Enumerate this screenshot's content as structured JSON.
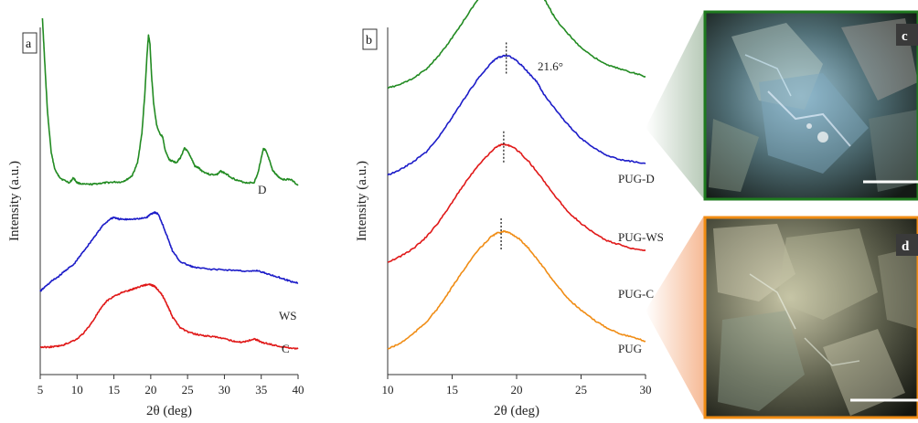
{
  "chart_data": [
    {
      "type": "line",
      "panel_label": "a",
      "xlabel": "2θ (deg)",
      "ylabel": "Intensity (a.u.)",
      "xlim": [
        5,
        40
      ],
      "xticks": [
        "5",
        "10",
        "15",
        "20",
        "25",
        "30",
        "35",
        "40"
      ],
      "grid": false,
      "series": [
        {
          "name": "D",
          "color": "#228b22",
          "points": [
            [
              5.3,
              1.05
            ],
            [
              5.6,
              0.92
            ],
            [
              6.0,
              0.76
            ],
            [
              6.5,
              0.64
            ],
            [
              7.0,
              0.59
            ],
            [
              7.5,
              0.57
            ],
            [
              8.0,
              0.56
            ],
            [
              9.0,
              0.55
            ],
            [
              9.5,
              0.565
            ],
            [
              10,
              0.55
            ],
            [
              11,
              0.545
            ],
            [
              12,
              0.545
            ],
            [
              13,
              0.548
            ],
            [
              14,
              0.55
            ],
            [
              15,
              0.552
            ],
            [
              16,
              0.552
            ],
            [
              16.8,
              0.56
            ],
            [
              17.5,
              0.572
            ],
            [
              18.2,
              0.61
            ],
            [
              18.8,
              0.7
            ],
            [
              19.2,
              0.82
            ],
            [
              19.5,
              0.94
            ],
            [
              19.7,
              1.0
            ],
            [
              19.9,
              0.97
            ],
            [
              20.1,
              0.88
            ],
            [
              20.4,
              0.79
            ],
            [
              20.8,
              0.725
            ],
            [
              21.2,
              0.7
            ],
            [
              21.6,
              0.69
            ],
            [
              22.0,
              0.645
            ],
            [
              22.5,
              0.62
            ],
            [
              23.0,
              0.615
            ],
            [
              23.5,
              0.612
            ],
            [
              24.0,
              0.625
            ],
            [
              24.6,
              0.655
            ],
            [
              25.0,
              0.645
            ],
            [
              25.5,
              0.625
            ],
            [
              26.0,
              0.6
            ],
            [
              26.5,
              0.595
            ],
            [
              27.0,
              0.585
            ],
            [
              28.0,
              0.575
            ],
            [
              29.0,
              0.575
            ],
            [
              29.5,
              0.585
            ],
            [
              30.0,
              0.58
            ],
            [
              31.0,
              0.565
            ],
            [
              32.0,
              0.555
            ],
            [
              33.0,
              0.55
            ],
            [
              34.0,
              0.55
            ],
            [
              34.5,
              0.575
            ],
            [
              35.0,
              0.625
            ],
            [
              35.3,
              0.655
            ],
            [
              35.6,
              0.648
            ],
            [
              36.0,
              0.625
            ],
            [
              36.5,
              0.59
            ],
            [
              37.0,
              0.575
            ],
            [
              37.5,
              0.565
            ],
            [
              38.0,
              0.56
            ],
            [
              39.0,
              0.56
            ],
            [
              40.0,
              0.542
            ]
          ]
        },
        {
          "name": "WS",
          "color": "#1c1cc8",
          "points": [
            [
              5.0,
              0.22
            ],
            [
              5.5,
              0.23
            ],
            [
              6.5,
              0.25
            ],
            [
              7.5,
              0.265
            ],
            [
              8.5,
              0.285
            ],
            [
              9.5,
              0.3
            ],
            [
              10.5,
              0.33
            ],
            [
              11.5,
              0.36
            ],
            [
              12.5,
              0.39
            ],
            [
              13.5,
              0.42
            ],
            [
              14.5,
              0.44
            ],
            [
              15.0,
              0.445
            ],
            [
              15.5,
              0.44
            ],
            [
              16.5,
              0.438
            ],
            [
              17.5,
              0.44
            ],
            [
              18.5,
              0.44
            ],
            [
              19.5,
              0.445
            ],
            [
              20.0,
              0.455
            ],
            [
              20.5,
              0.46
            ],
            [
              21.0,
              0.455
            ],
            [
              21.5,
              0.43
            ],
            [
              22.0,
              0.4
            ],
            [
              22.5,
              0.37
            ],
            [
              23.0,
              0.34
            ],
            [
              24.0,
              0.31
            ],
            [
              25.0,
              0.3
            ],
            [
              26.0,
              0.292
            ],
            [
              28.0,
              0.287
            ],
            [
              30.0,
              0.285
            ],
            [
              32.0,
              0.283
            ],
            [
              33.5,
              0.28
            ],
            [
              34.5,
              0.283
            ],
            [
              35.5,
              0.275
            ],
            [
              37.0,
              0.265
            ],
            [
              38.0,
              0.258
            ],
            [
              39.0,
              0.25
            ],
            [
              40.0,
              0.245
            ]
          ]
        },
        {
          "name": "C",
          "color": "#e01818",
          "points": [
            [
              5.0,
              0.05
            ],
            [
              6.0,
              0.05
            ],
            [
              7.0,
              0.052
            ],
            [
              8.0,
              0.055
            ],
            [
              9.0,
              0.065
            ],
            [
              10.0,
              0.075
            ],
            [
              11.0,
              0.095
            ],
            [
              12.0,
              0.125
            ],
            [
              13.0,
              0.16
            ],
            [
              14.0,
              0.19
            ],
            [
              15.0,
              0.205
            ],
            [
              16.0,
              0.215
            ],
            [
              17.0,
              0.222
            ],
            [
              18.0,
              0.23
            ],
            [
              19.0,
              0.238
            ],
            [
              19.5,
              0.24
            ],
            [
              20.0,
              0.24
            ],
            [
              20.5,
              0.235
            ],
            [
              21.0,
              0.225
            ],
            [
              21.5,
              0.21
            ],
            [
              22.0,
              0.19
            ],
            [
              22.5,
              0.165
            ],
            [
              23.0,
              0.14
            ],
            [
              24.0,
              0.11
            ],
            [
              25.0,
              0.097
            ],
            [
              26.0,
              0.09
            ],
            [
              27.0,
              0.086
            ],
            [
              28.0,
              0.083
            ],
            [
              29.0,
              0.08
            ],
            [
              30.0,
              0.075
            ],
            [
              31.0,
              0.07
            ],
            [
              32.0,
              0.065
            ],
            [
              33.0,
              0.068
            ],
            [
              34.0,
              0.075
            ],
            [
              34.5,
              0.072
            ],
            [
              35.0,
              0.065
            ],
            [
              36.0,
              0.06
            ],
            [
              37.0,
              0.055
            ],
            [
              38.0,
              0.05
            ],
            [
              39.0,
              0.048
            ],
            [
              40.0,
              0.045
            ]
          ]
        }
      ],
      "series_labels": [
        "D",
        "WS",
        "C"
      ]
    },
    {
      "type": "line",
      "panel_label": "b",
      "xlabel": "2θ (deg)",
      "ylabel": "Intensity (a.u.)",
      "xlim": [
        10,
        30
      ],
      "xticks": [
        "10",
        "15",
        "20",
        "25",
        "30"
      ],
      "grid": false,
      "annotation": "21.6°",
      "series": [
        {
          "name": "PUG-D",
          "color": "#228b22",
          "offset": 0.675,
          "points": [
            [
              10,
              0.0
            ],
            [
              11,
              0.01
            ],
            [
              12,
              0.025
            ],
            [
              13,
              0.05
            ],
            [
              14,
              0.085
            ],
            [
              15,
              0.13
            ],
            [
              16,
              0.18
            ],
            [
              17,
              0.23
            ],
            [
              18,
              0.27
            ],
            [
              18.8,
              0.29
            ],
            [
              19.4,
              0.3
            ],
            [
              20.0,
              0.295
            ],
            [
              20.8,
              0.285
            ],
            [
              21.3,
              0.28
            ],
            [
              21.6,
              0.272
            ],
            [
              22.0,
              0.24
            ],
            [
              22.5,
              0.21
            ],
            [
              23,
              0.18
            ],
            [
              24,
              0.14
            ],
            [
              25,
              0.105
            ],
            [
              26,
              0.08
            ],
            [
              27,
              0.06
            ],
            [
              28,
              0.05
            ],
            [
              29,
              0.04
            ],
            [
              30,
              0.03
            ]
          ]
        },
        {
          "name": "PUG-WS",
          "color": "#1c1cc8",
          "offset": 0.45,
          "points": [
            [
              10,
              0.0
            ],
            [
              11,
              0.015
            ],
            [
              12,
              0.035
            ],
            [
              13,
              0.06
            ],
            [
              14,
              0.1
            ],
            [
              15,
              0.15
            ],
            [
              16,
              0.2
            ],
            [
              17,
              0.25
            ],
            [
              18,
              0.29
            ],
            [
              18.6,
              0.305
            ],
            [
              19.2,
              0.31
            ],
            [
              19.8,
              0.302
            ],
            [
              20.5,
              0.28
            ],
            [
              21,
              0.262
            ],
            [
              21.6,
              0.24
            ],
            [
              22,
              0.215
            ],
            [
              23,
              0.17
            ],
            [
              24,
              0.13
            ],
            [
              25,
              0.095
            ],
            [
              26,
              0.07
            ],
            [
              27,
              0.05
            ],
            [
              28,
              0.04
            ],
            [
              29,
              0.035
            ],
            [
              30,
              0.03
            ]
          ]
        },
        {
          "name": "PUG-C",
          "color": "#e01818",
          "offset": 0.225,
          "points": [
            [
              10,
              0.0
            ],
            [
              11,
              0.015
            ],
            [
              12,
              0.035
            ],
            [
              13,
              0.065
            ],
            [
              14,
              0.105
            ],
            [
              15,
              0.155
            ],
            [
              16,
              0.205
            ],
            [
              17,
              0.25
            ],
            [
              18,
              0.285
            ],
            [
              18.5,
              0.3
            ],
            [
              19,
              0.305
            ],
            [
              19.6,
              0.3
            ],
            [
              20.2,
              0.285
            ],
            [
              21,
              0.258
            ],
            [
              22,
              0.215
            ],
            [
              23,
              0.17
            ],
            [
              24,
              0.13
            ],
            [
              25,
              0.1
            ],
            [
              26,
              0.075
            ],
            [
              27,
              0.055
            ],
            [
              28,
              0.045
            ],
            [
              29,
              0.035
            ],
            [
              30,
              0.03
            ]
          ]
        },
        {
          "name": "PUG",
          "color": "#f08c14",
          "offset": 0.0,
          "points": [
            [
              10,
              0.0
            ],
            [
              11,
              0.015
            ],
            [
              12,
              0.04
            ],
            [
              13,
              0.07
            ],
            [
              14,
              0.11
            ],
            [
              15,
              0.16
            ],
            [
              16,
              0.21
            ],
            [
              17,
              0.255
            ],
            [
              18,
              0.29
            ],
            [
              18.5,
              0.3
            ],
            [
              19,
              0.305
            ],
            [
              19.6,
              0.298
            ],
            [
              20.2,
              0.285
            ],
            [
              21,
              0.258
            ],
            [
              22,
              0.215
            ],
            [
              23,
              0.17
            ],
            [
              24,
              0.13
            ],
            [
              25,
              0.1
            ],
            [
              26,
              0.075
            ],
            [
              27,
              0.055
            ],
            [
              28,
              0.04
            ],
            [
              29,
              0.03
            ],
            [
              30,
              0.02
            ]
          ]
        }
      ],
      "peak_markers_2theta": [
        19.4,
        19.2,
        19.0,
        18.8
      ]
    }
  ],
  "micrographs": [
    {
      "label": "c",
      "border_color": "#228b22"
    },
    {
      "label": "d",
      "border_color": "#f08c14"
    }
  ]
}
